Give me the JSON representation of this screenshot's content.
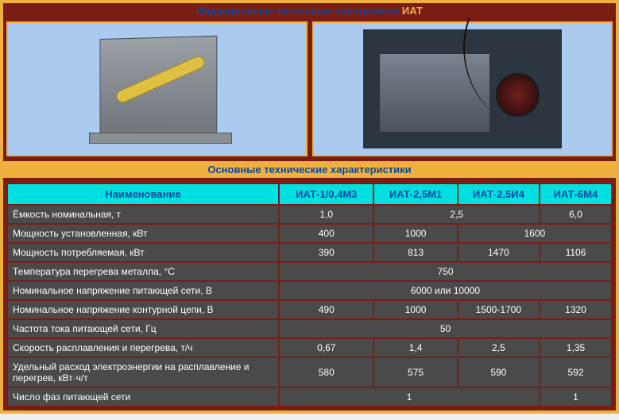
{
  "colors": {
    "outer_border": "#f0b040",
    "deep_red": "#7a1e14",
    "header_blue_text": "#0a48a0",
    "header_accent": "#f0b040",
    "image_bg": "#aacbef",
    "subheader_bg": "#f0b040",
    "th_bg": "#00e0e0",
    "td_bg": "#4a4a4a",
    "td_text": "#ffffff"
  },
  "title": {
    "prefix": "Индукционные тигельные электропечи ",
    "accent": "ИАТ"
  },
  "subheader": "Основные технические характеристики",
  "table": {
    "head_label": "Наименование",
    "models": [
      "ИАТ-1/0,4М3",
      "ИАТ-2,5М1",
      "ИАТ-2,5И4",
      "ИАТ-6М4"
    ],
    "rows": [
      {
        "label": "Ёмкость номинальная, т",
        "cells": [
          {
            "v": "1,0",
            "span": 1
          },
          {
            "v": "2,5",
            "span": 2
          },
          {
            "v": "6,0",
            "span": 1
          }
        ]
      },
      {
        "label": "Мощность установленная, кВт",
        "cells": [
          {
            "v": "400",
            "span": 1
          },
          {
            "v": "1000",
            "span": 1
          },
          {
            "v": "1600",
            "span": 2
          }
        ]
      },
      {
        "label": "Мощность потребляемая, кВт",
        "cells": [
          {
            "v": "390",
            "span": 1
          },
          {
            "v": "813",
            "span": 1
          },
          {
            "v": "1470",
            "span": 1
          },
          {
            "v": "1106",
            "span": 1
          }
        ]
      },
      {
        "label": "Температура перегрева металла, °С",
        "cells": [
          {
            "v": "750",
            "span": 4
          }
        ]
      },
      {
        "label": "Номинальное напряжение питающей сети, В",
        "cells": [
          {
            "v": "6000 или 10000",
            "span": 4
          }
        ]
      },
      {
        "label": "Номинальное напряжение контурной цепи, В",
        "cells": [
          {
            "v": "490",
            "span": 1
          },
          {
            "v": "1000",
            "span": 1
          },
          {
            "v": "1500-1700",
            "span": 1
          },
          {
            "v": "1320",
            "span": 1
          }
        ]
      },
      {
        "label": "Частота тока питающей сети, Гц",
        "cells": [
          {
            "v": "50",
            "span": 4
          }
        ]
      },
      {
        "label": "Скорость расплавления и перегрева, т/ч",
        "cells": [
          {
            "v": "0,67",
            "span": 1
          },
          {
            "v": "1,4",
            "span": 1
          },
          {
            "v": "2,5",
            "span": 1
          },
          {
            "v": "1,35",
            "span": 1
          }
        ]
      },
      {
        "label": "Удельный расход электроэнергии на расплавление и перегрев, кВт·ч/т",
        "cells": [
          {
            "v": "580",
            "span": 1
          },
          {
            "v": "575",
            "span": 1
          },
          {
            "v": "590",
            "span": 1
          },
          {
            "v": "592",
            "span": 1
          }
        ]
      },
      {
        "label": "Число фаз питающей сети",
        "cells": [
          {
            "v": "1",
            "span": 3
          },
          {
            "v": "1",
            "span": 1
          }
        ]
      }
    ]
  }
}
